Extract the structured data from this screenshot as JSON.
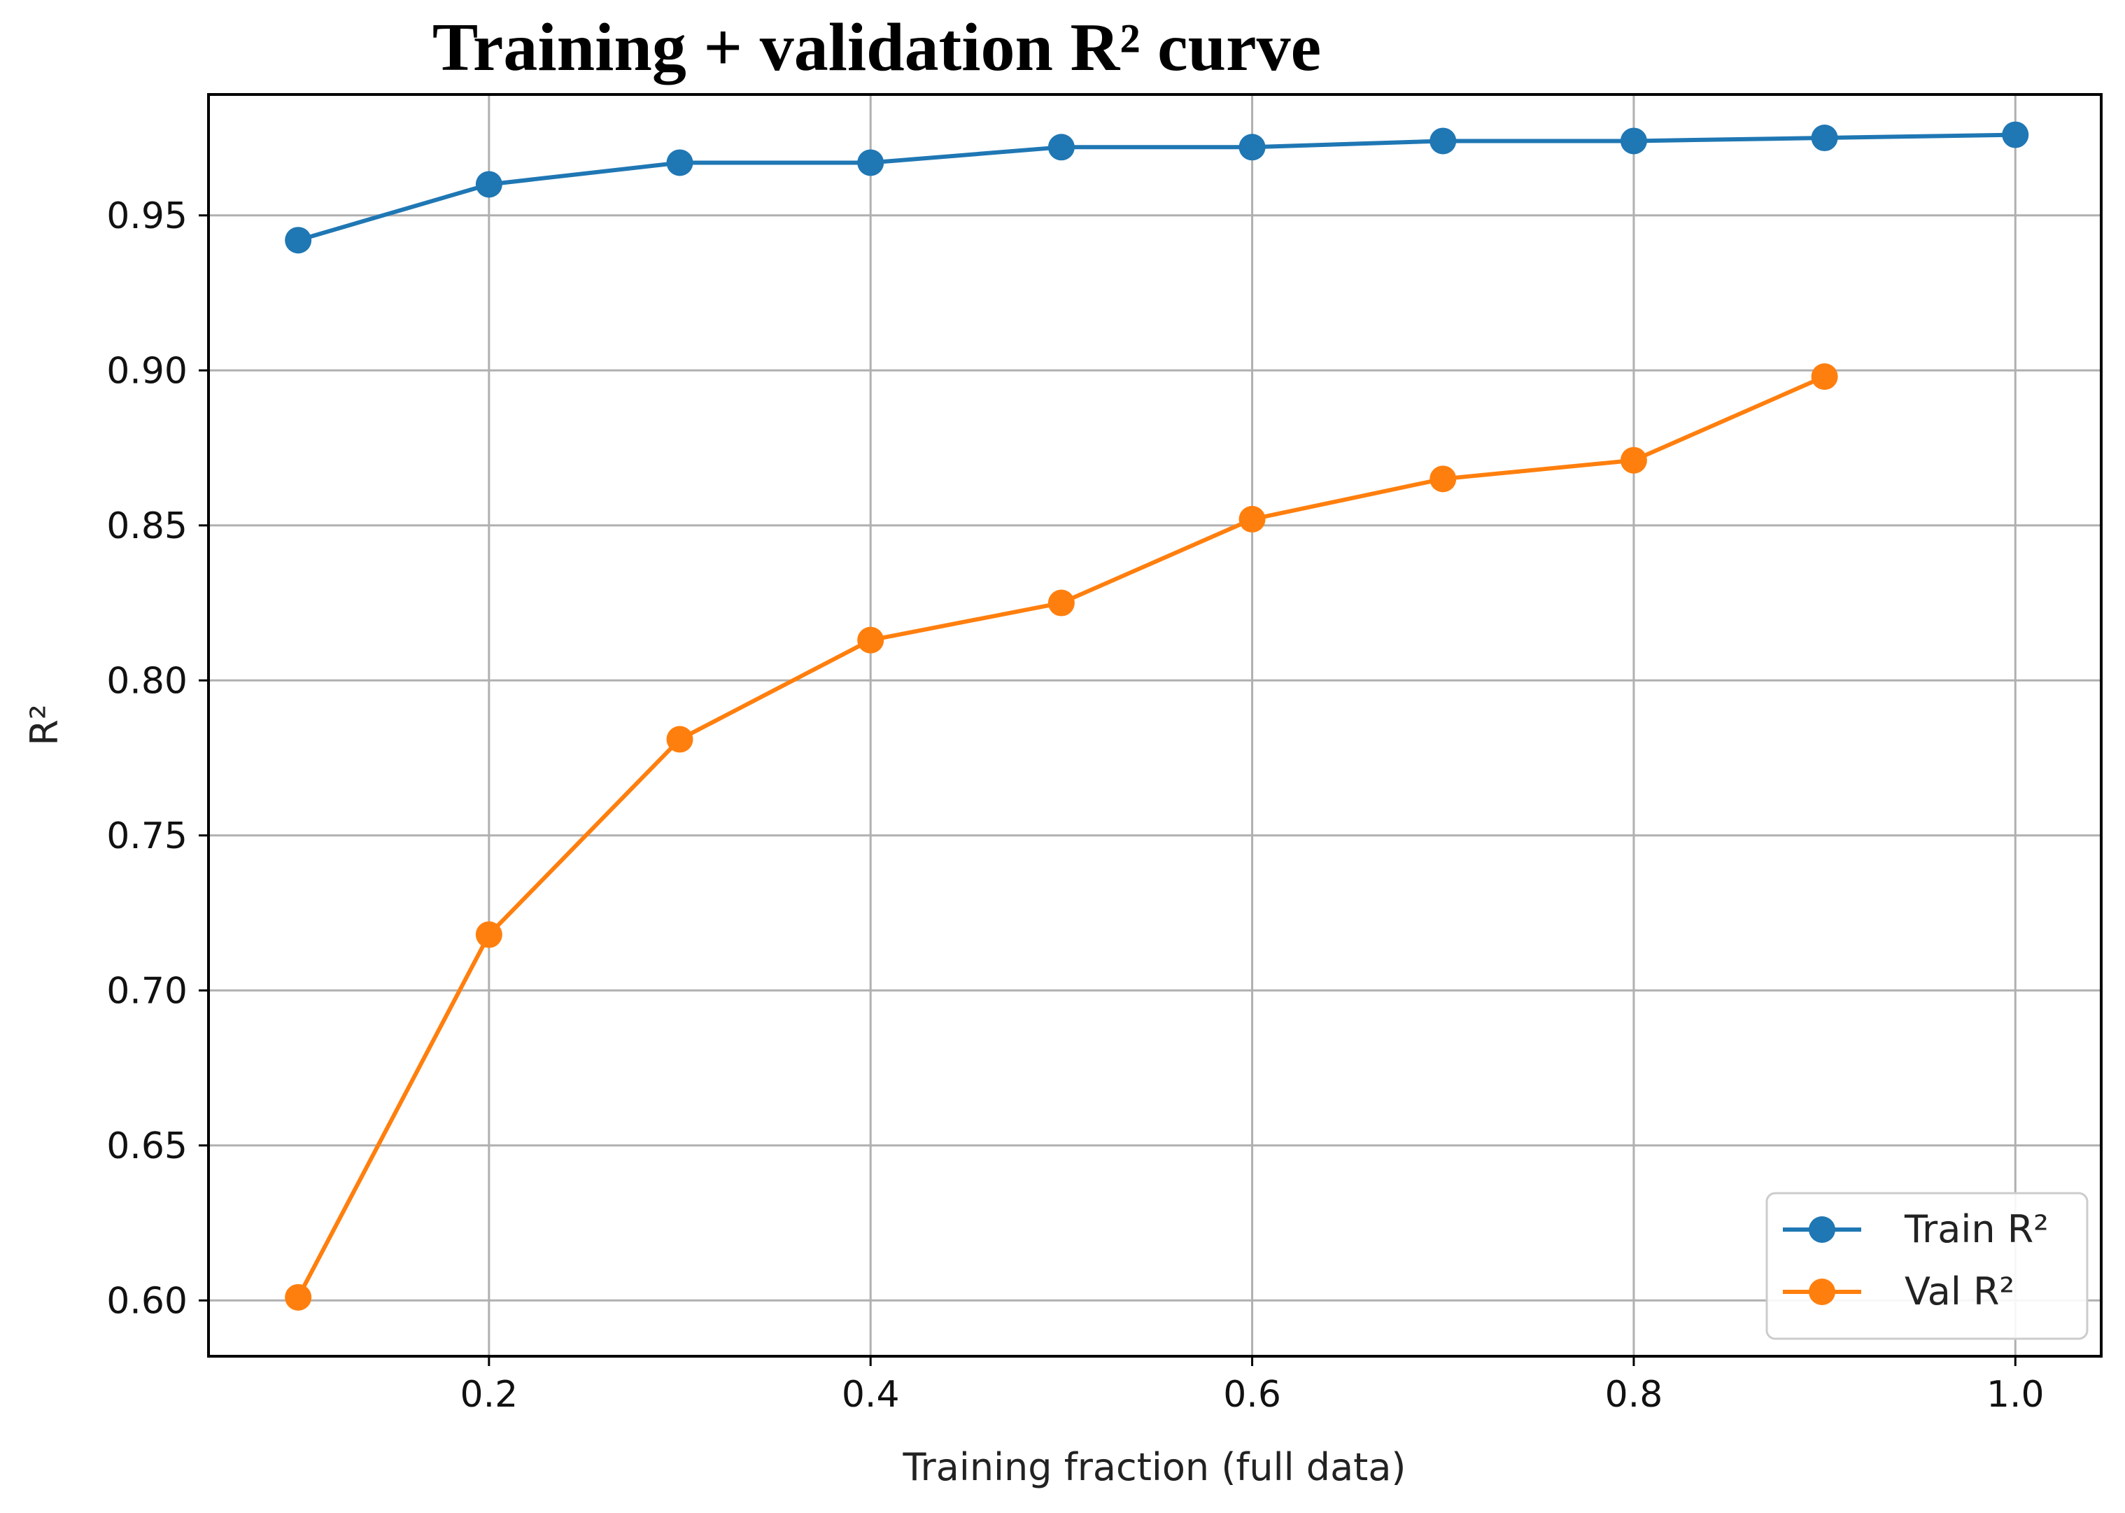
{
  "chart_data": {
    "type": "line",
    "title": "Training + validation R² curve",
    "xlabel": "Training fraction (full data)",
    "ylabel": "R²",
    "xlim": [
      0.053,
      1.045
    ],
    "ylim": [
      0.582,
      0.989
    ],
    "xticks": [
      0.2,
      0.4,
      0.6,
      0.8,
      1.0
    ],
    "xtick_labels": [
      "0.2",
      "0.4",
      "0.6",
      "0.8",
      "1.0"
    ],
    "yticks": [
      0.6,
      0.65,
      0.7,
      0.75,
      0.8,
      0.85,
      0.9,
      0.95
    ],
    "ytick_labels": [
      "0.60",
      "0.65",
      "0.70",
      "0.75",
      "0.80",
      "0.85",
      "0.90",
      "0.95"
    ],
    "grid": true,
    "legend_position": "bottom-right",
    "series": [
      {
        "name": "Train R²",
        "color": "#1f77b4",
        "x": [
          0.1,
          0.2,
          0.3,
          0.4,
          0.5,
          0.6,
          0.7,
          0.8,
          0.9,
          1.0
        ],
        "values": [
          0.942,
          0.96,
          0.967,
          0.967,
          0.972,
          0.972,
          0.974,
          0.974,
          0.975,
          0.976
        ]
      },
      {
        "name": "Val R²",
        "color": "#ff7f0e",
        "x": [
          0.1,
          0.2,
          0.3,
          0.4,
          0.5,
          0.6,
          0.7,
          0.8,
          0.9
        ],
        "values": [
          0.601,
          0.718,
          0.781,
          0.813,
          0.825,
          0.852,
          0.865,
          0.871,
          0.898
        ]
      }
    ]
  }
}
